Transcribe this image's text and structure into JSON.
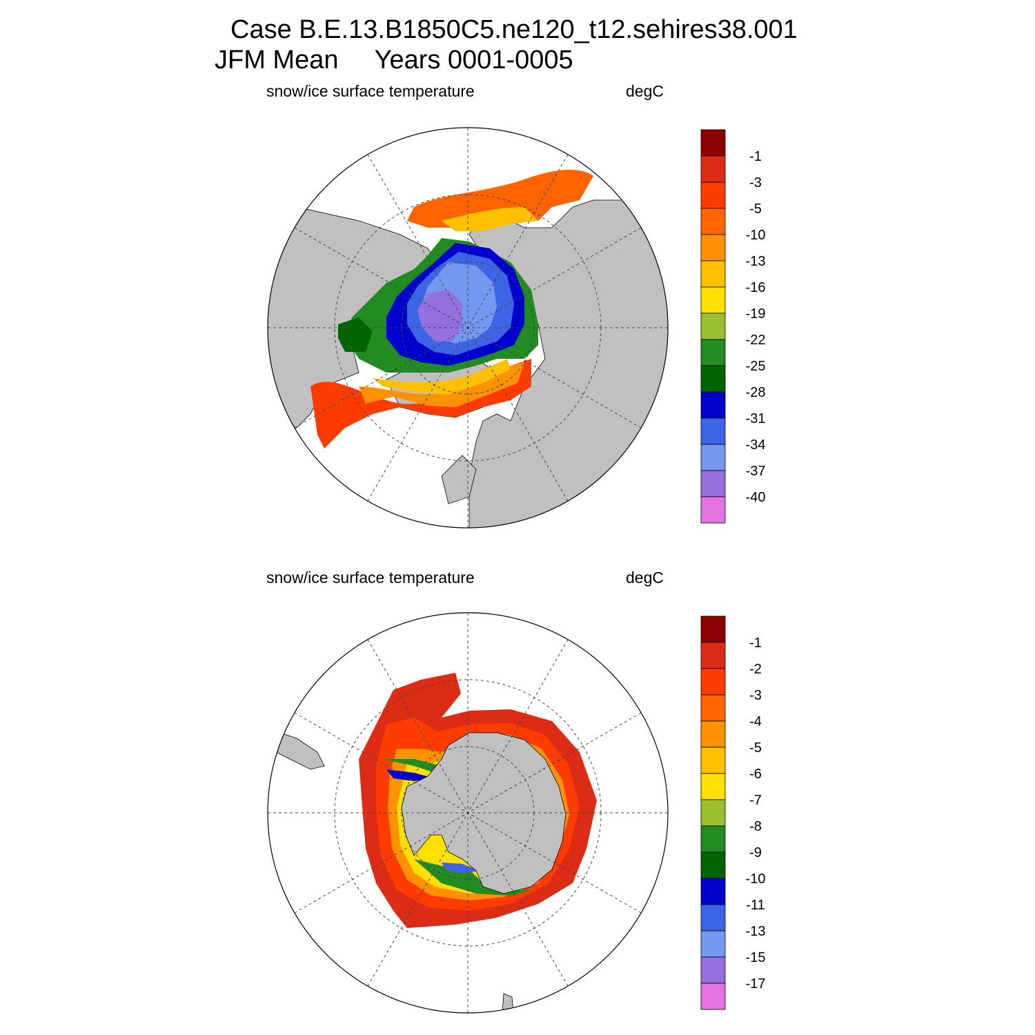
{
  "title": {
    "line1": "Case B.E.13.B1850C5.ne120_t12.sehires38.001",
    "line2": "JFM Mean     Years 0001-0005"
  },
  "panels": [
    {
      "id": "north",
      "variable": "snow/ice surface temperature",
      "units": "degC",
      "hemisphere": "north",
      "colorbar": {
        "labels": [
          "-1",
          "-3",
          "-5",
          "-10",
          "-13",
          "-16",
          "-19",
          "-22",
          "-25",
          "-28",
          "-31",
          "-34",
          "-37",
          "-40"
        ],
        "colors": [
          "#8b0000",
          "#dc2c16",
          "#ff3c00",
          "#ff6400",
          "#ff9200",
          "#ffc000",
          "#ffe000",
          "#9cbf30",
          "#228b22",
          "#006400",
          "#0000cd",
          "#3e64e6",
          "#7497f0",
          "#9470dc",
          "#e472e0"
        ]
      }
    },
    {
      "id": "south",
      "variable": "snow/ice surface temperature",
      "units": "degC",
      "hemisphere": "south",
      "colorbar": {
        "labels": [
          "-1",
          "-2",
          "-3",
          "-4",
          "-5",
          "-6",
          "-7",
          "-8",
          "-9",
          "-10",
          "-11",
          "-13",
          "-15",
          "-17"
        ],
        "colors": [
          "#8b0000",
          "#dc2c16",
          "#ff3c00",
          "#ff6400",
          "#ff9200",
          "#ffc000",
          "#ffe000",
          "#9cbf30",
          "#228b22",
          "#006400",
          "#0000cd",
          "#3e64e6",
          "#7497f0",
          "#9470dc",
          "#e472e0"
        ]
      }
    }
  ],
  "land_color": "#c0c0c0",
  "ocean_color": "#ffffff"
}
